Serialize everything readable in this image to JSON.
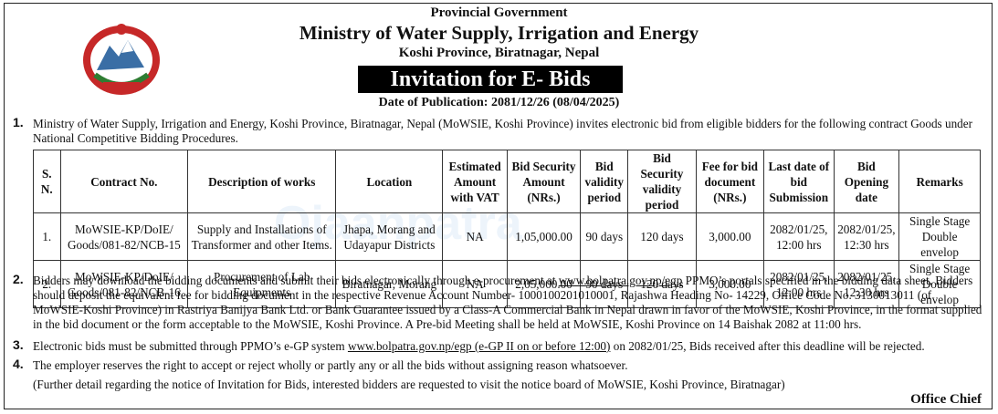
{
  "header": {
    "line1": "Provincial Government",
    "ministry": "Ministry of Water Supply, Irrigation and Energy",
    "address": "Koshi Province, Biratnagar, Nepal",
    "banner": "Invitation for E- Bids",
    "pub_date": "Date of Publication: 2081/12/26 (08/04/2025)"
  },
  "para1": {
    "num": "1.",
    "text": "Ministry of Water Supply, Irrigation and Energy, Koshi Province, Biratnagar, Nepal (MoWSIE, Koshi Province) invites electronic bid from eligible bidders for the following contract Goods under National Competitive Bidding Procedures."
  },
  "table": {
    "headers": [
      "S. N.",
      "Contract No.",
      "Description of works",
      "Location",
      "Estimated Amount with VAT",
      "Bid Security Amount (NRs.)",
      "Bid validity period",
      "Bid Security validity period",
      "Fee for bid document (NRs.)",
      "Last date of bid Submission",
      "Bid Opening date",
      "Remarks"
    ],
    "rows": [
      [
        "1.",
        "MoWSIE-KP/DoIE/ Goods/081-82/NCB-15",
        "Supply and Installations of Transformer and other Items.",
        "Jhapa, Morang and Udayapur Districts",
        "NA",
        "1,05,000.00",
        "90 days",
        "120 days",
        "3,000.00",
        "2082/01/25, 12:00 hrs",
        "2082/01/25, 12:30 hrs",
        "Single Stage Double envelop"
      ],
      [
        "2.",
        "MoWSIE-KP/DoIE/ Goods/081-82/NCB-16",
        "Procurement of Lab Equipments",
        "Biratnagar, Morang",
        "NA",
        "2,05,000.00",
        "90 days",
        "120 days",
        "3,000.00",
        "2082/01/25, 12:00 hrs",
        "2082/01/25, 12:30 hrs",
        "Single Stage Double envelop"
      ]
    ]
  },
  "para2": {
    "num": "2.",
    "text_before": "Bidders may download the bidding documents and submit their bids electronically through e-procurement at ",
    "link": "www.bolpatra.gov.np/egp",
    "text_after": " PPMO’s portals specified in the bidding data sheet. Bidders should deposit the equivalent fee for bidding document in the respective Revenue Account Number- 1000100201010001, Rajashwa Heading No- 14229, Office Code No. 3130013011 (of MoWSIE-Koshi Province) in Rastriya Banijya Bank Ltd. or Bank Guarantee issued by a Class-A Commercial Bank in Nepal drawn in favor of the MoWSIE, Koshi Province, in the format supplied in the bid document or the form acceptable to the MoWSIE, Koshi Province. A Pre-bid Meeting shall be held at MoWSIE, Koshi Province on 14 Baishak 2082 at 11:00 hrs."
  },
  "para3": {
    "num": "3.",
    "text_before": "Electronic bids must be submitted through PPMO’s e-GP system ",
    "link": "www.bolpatra.gov.np/egp (e-GP II on or before 12:00)",
    "text_after": " on 2082/01/25, Bids received after this deadline will be rejected."
  },
  "para4": {
    "num": "4.",
    "text": "The employer reserves the right to accept or reject wholly or partly any or all the bids without assigning reason whatsoever."
  },
  "note": "(Further detail regarding the notice of Invitation for Bids, interested bidders are requested to visit the notice board of MoWSIE, Koshi Province, Biratnagar)",
  "signature": "Office Chief"
}
